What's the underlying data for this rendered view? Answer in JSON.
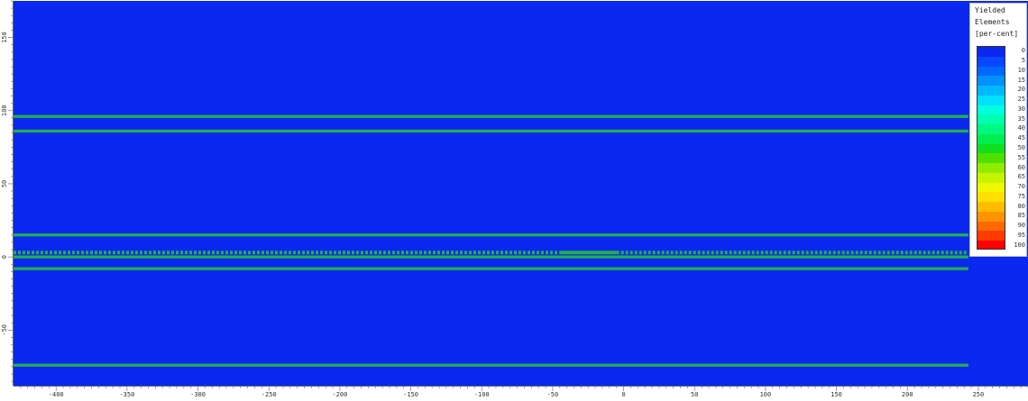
{
  "chart_data": {
    "type": "heatmap",
    "title": "",
    "xlabel": "",
    "ylabel": "",
    "xlim": [
      -430,
      285
    ],
    "ylim": [
      -88,
      175
    ],
    "x_ticks": [
      "-400",
      "-350",
      "-300",
      "-250",
      "-200",
      "-150",
      "-100",
      "-50",
      "0",
      "50",
      "100",
      "150",
      "200",
      "250"
    ],
    "y_ticks": [
      "150",
      "100",
      "50",
      "0",
      "-50"
    ],
    "background_color": "#0a28f0",
    "layer_line_color": "#22b04a",
    "layer_boundaries_y": [
      96,
      86,
      15,
      0,
      -8,
      -74
    ],
    "yielded_band": {
      "y": 3,
      "segments": [
        {
          "x_start": -430,
          "x_end": -45,
          "pattern": "dashed"
        },
        {
          "x_start": -45,
          "x_end": -5,
          "pattern": "solid"
        },
        {
          "x_start": -5,
          "x_end": 243,
          "pattern": "dashed"
        }
      ]
    },
    "legend": {
      "title_lines": [
        "Yielded",
        "Elements",
        "[per-cent]"
      ],
      "values": [
        "0",
        "5",
        "10",
        "15",
        "20",
        "25",
        "30",
        "35",
        "40",
        "45",
        "50",
        "55",
        "60",
        "65",
        "70",
        "75",
        "80",
        "85",
        "90",
        "95",
        "100"
      ],
      "colors": [
        "#0a28f0",
        "#0846ff",
        "#0068ff",
        "#0090ff",
        "#00b8ff",
        "#00e0ff",
        "#00ffe0",
        "#00ffb0",
        "#00f880",
        "#00ee50",
        "#10e020",
        "#50e000",
        "#90ec00",
        "#c8f400",
        "#f0f800",
        "#ffe000",
        "#ffbc00",
        "#ff9400",
        "#ff6800",
        "#ff3a00",
        "#ff0000"
      ],
      "placement": "right"
    }
  }
}
